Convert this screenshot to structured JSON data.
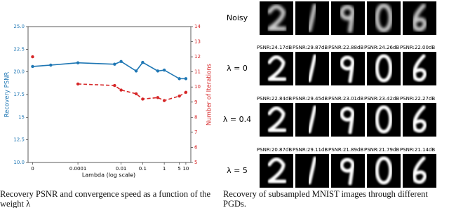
{
  "chart_data": {
    "type": "line",
    "xlabel": "Lambda (log scale)",
    "ylabel": "Recovery PSNR",
    "y2label": "Number of Iterations",
    "xscale": "symlog",
    "linthresh": 0.0001,
    "linscale": 2.1,
    "x": [
      0,
      4e-05,
      0.0001,
      0.005,
      0.01,
      0.05,
      0.1,
      0.5,
      1,
      5,
      10
    ],
    "series": [
      {
        "color": "#1f77b4",
        "linestyle": "solid",
        "axis": "y",
        "values": [
          20.6,
          20.75,
          21.0,
          20.85,
          21.15,
          20.1,
          21.05,
          20.1,
          20.2,
          19.25,
          19.25
        ]
      },
      {
        "color": "#d62728",
        "linestyle": "dashed",
        "axis": "y2",
        "values": [
          12.0,
          null,
          10.2,
          10.1,
          9.8,
          9.55,
          9.2,
          9.3,
          9.1,
          9.4,
          9.65
        ]
      }
    ],
    "xlim": [
      -1e-05,
      17
    ],
    "xticks": [
      0,
      0.0001,
      0.01,
      0.1,
      1,
      5,
      10
    ],
    "ylim": [
      10,
      25
    ],
    "yticks": [
      {
        "value": 10,
        "label": "10.0"
      },
      12.5,
      15.0,
      17.5,
      {
        "value": 20,
        "label": "20.0"
      },
      22.5,
      {
        "value": 25,
        "label": "25.0"
      }
    ],
    "y2lim": [
      5,
      14
    ],
    "y2ticks": [
      5,
      6,
      7,
      8,
      9,
      10,
      11,
      12,
      13,
      14
    ]
  },
  "image_grid": {
    "row_labels": [
      "Noisy",
      "λ = 0",
      "λ = 0.4",
      "λ = 5"
    ],
    "psnr": [
      [
        "PSNR:24.17dB",
        "PSNR:29.87dB",
        "PSNR:22.88dB",
        "PSNR:24.26dB",
        "PSNR:22.00dB"
      ],
      [
        "PSNR:22.84dB",
        "PSNR:29.45dB",
        "PSNR:23.01dB",
        "PSNR:23.42dB",
        "PSNR:22.27dB"
      ],
      [
        "PSNR:20.87dB",
        "PSNR:29.11dB",
        "PSNR:21.89dB",
        "PSNR:21.79dB",
        "PSNR:21.14dB"
      ]
    ]
  },
  "captions": [
    "Recovery PSNR and convergence speed as a function of the weight λ",
    "Recovery of subsampled MNIST images through different PGDs."
  ]
}
